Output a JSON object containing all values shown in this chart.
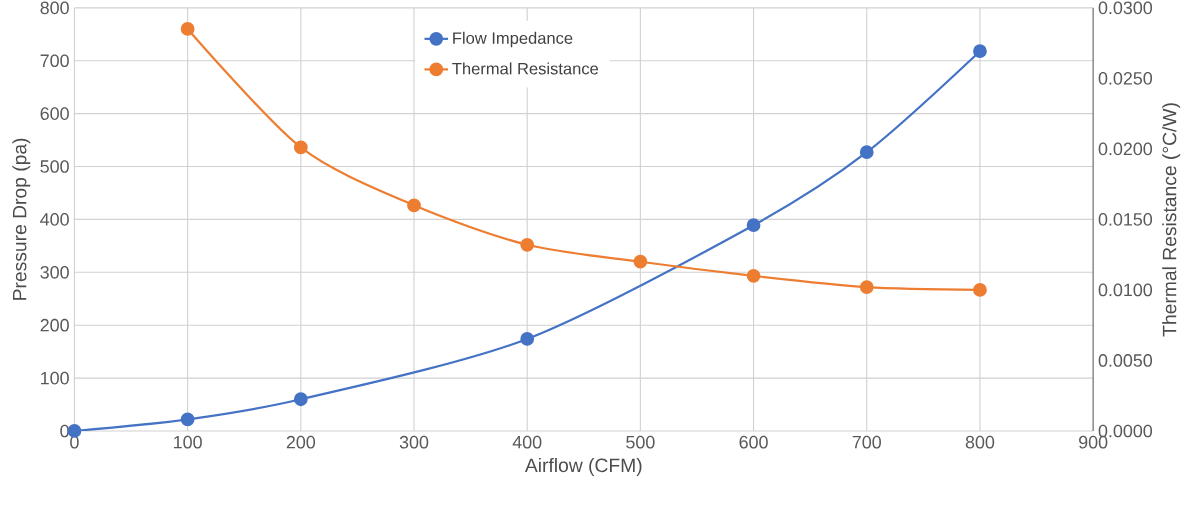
{
  "chart_data": {
    "type": "line",
    "xlabel": "Airflow (CFM)",
    "ylabel": "Pressure Drop (pa)",
    "y2label": "Thermal Resistance (°C/W)",
    "series": [
      {
        "name": "Flow Impedance",
        "color": "#4472c4",
        "x": [
          0,
          100,
          200,
          400,
          600,
          700,
          800
        ],
        "values": [
          0,
          22,
          60,
          174,
          389,
          527,
          718
        ]
      },
      {
        "name": "Thermal Resistance",
        "color": "#ed7d31",
        "axis": "y2",
        "x": [
          100,
          200,
          300,
          400,
          500,
          600,
          700,
          800
        ],
        "values": [
          0.0285,
          0.0201,
          0.016,
          0.0132,
          0.012,
          0.011,
          0.0102,
          0.01
        ]
      }
    ],
    "xlim": [
      0,
      900
    ],
    "xticks": [
      0,
      100,
      200,
      300,
      400,
      500,
      600,
      700,
      800,
      900
    ],
    "ylim": [
      0,
      800
    ],
    "yticks": [
      0,
      100,
      200,
      300,
      400,
      500,
      600,
      700,
      800
    ],
    "y2lim": [
      0,
      0.03
    ],
    "y2ticks": [
      {
        "value": 0,
        "label": "0.0000"
      },
      {
        "value": 0.005,
        "label": "0.0050"
      },
      {
        "value": 0.01,
        "label": "0.0100"
      },
      {
        "value": 0.015,
        "label": "0.0150"
      },
      {
        "value": 0.02,
        "label": "0.0200"
      },
      {
        "value": 0.025,
        "label": "0.0250"
      },
      {
        "value": 0.03,
        "label": "0.0300"
      }
    ],
    "grid": true,
    "legend": "top",
    "marker": "circle",
    "line_style": "solid"
  }
}
